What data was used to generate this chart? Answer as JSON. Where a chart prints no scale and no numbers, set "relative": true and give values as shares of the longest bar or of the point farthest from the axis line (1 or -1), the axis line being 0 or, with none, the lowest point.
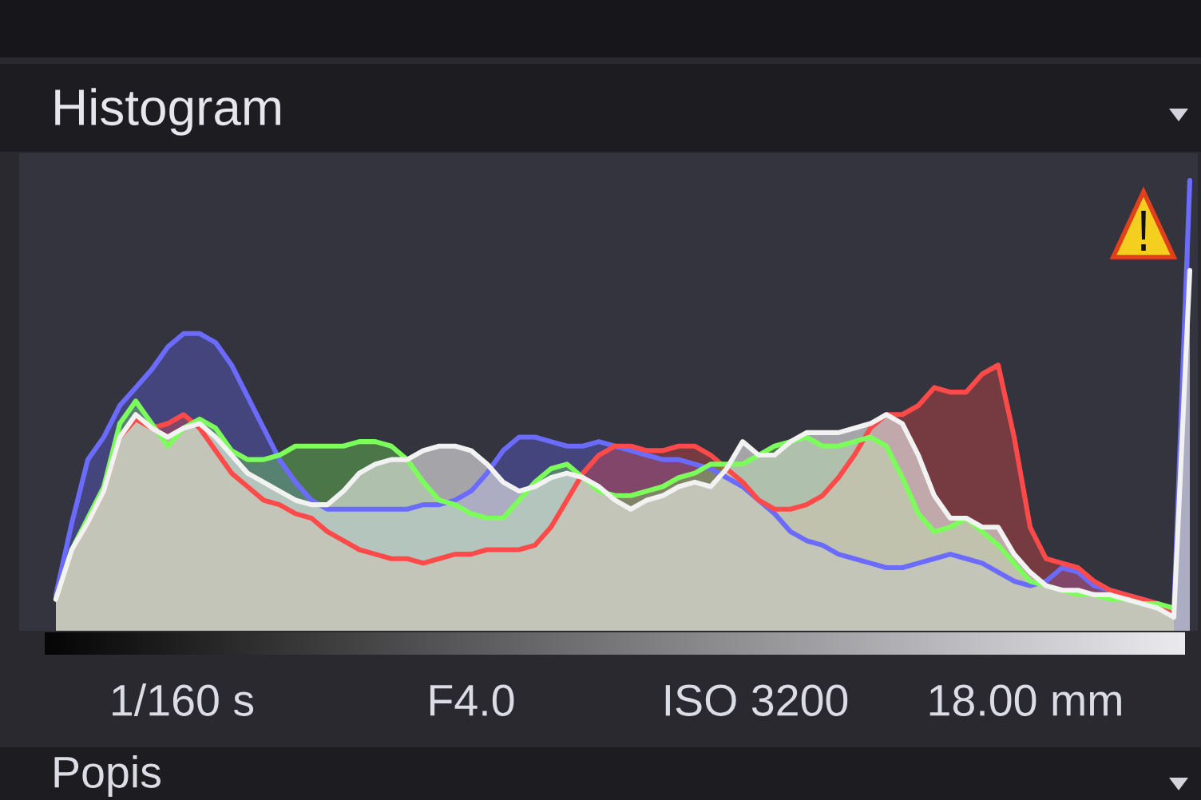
{
  "chart_data": {
    "type": "area",
    "title": "Histogram",
    "relative": true,
    "categories": [
      null,
      null,
      null,
      null,
      null,
      null,
      null,
      null,
      null,
      null,
      null,
      null,
      null,
      null,
      null,
      null,
      null,
      null,
      null,
      null,
      null,
      null,
      null,
      null,
      null,
      null,
      null,
      null,
      null,
      null,
      null,
      null,
      null,
      null,
      null,
      null,
      null,
      null,
      null,
      null,
      null,
      null,
      null,
      null,
      null,
      null,
      null,
      null,
      null,
      null,
      null,
      null,
      null,
      null,
      null,
      null,
      null,
      null,
      null,
      null,
      null,
      null,
      null,
      null,
      null,
      null,
      null,
      null,
      null,
      null,
      null,
      null
    ],
    "series": [
      {
        "color": "#6b6bff",
        "values": [
          0.08,
          0.24,
          0.38,
          0.43,
          0.5,
          0.54,
          0.58,
          0.63,
          0.66,
          0.66,
          0.64,
          0.59,
          0.52,
          0.45,
          0.38,
          0.33,
          0.29,
          0.27,
          0.27,
          0.27,
          0.27,
          0.27,
          0.27,
          0.28,
          0.28,
          0.29,
          0.31,
          0.35,
          0.4,
          0.43,
          0.43,
          0.42,
          0.41,
          0.41,
          0.42,
          0.41,
          0.4,
          0.39,
          0.38,
          0.38,
          0.37,
          0.36,
          0.34,
          0.32,
          0.29,
          0.26,
          0.22,
          0.2,
          0.19,
          0.17,
          0.16,
          0.15,
          0.14,
          0.14,
          0.15,
          0.16,
          0.17,
          0.16,
          0.15,
          0.13,
          0.11,
          0.1,
          0.11,
          0.14,
          0.13,
          0.1,
          0.09,
          0.08,
          0.07,
          0.06,
          0.04,
          1.0
        ]
      },
      {
        "color": "#ff4a4a",
        "values": [
          0.07,
          0.18,
          0.24,
          0.31,
          0.43,
          0.47,
          0.45,
          0.46,
          0.48,
          0.45,
          0.4,
          0.35,
          0.32,
          0.29,
          0.28,
          0.26,
          0.25,
          0.22,
          0.2,
          0.18,
          0.17,
          0.16,
          0.16,
          0.15,
          0.16,
          0.17,
          0.17,
          0.18,
          0.18,
          0.18,
          0.19,
          0.23,
          0.29,
          0.35,
          0.39,
          0.41,
          0.41,
          0.4,
          0.4,
          0.41,
          0.41,
          0.39,
          0.36,
          0.33,
          0.29,
          0.27,
          0.27,
          0.28,
          0.3,
          0.34,
          0.39,
          0.45,
          0.48,
          0.48,
          0.5,
          0.54,
          0.53,
          0.53,
          0.57,
          0.59,
          0.43,
          0.23,
          0.16,
          0.15,
          0.14,
          0.11,
          0.09,
          0.08,
          0.07,
          0.06,
          0.04,
          null
        ]
      },
      {
        "color": "#7cff5a",
        "values": [
          0.07,
          0.18,
          0.25,
          0.32,
          0.46,
          0.51,
          0.46,
          0.41,
          0.45,
          0.47,
          0.45,
          0.4,
          0.38,
          0.38,
          0.39,
          0.41,
          0.41,
          0.41,
          0.41,
          0.42,
          0.42,
          0.41,
          0.38,
          0.33,
          0.29,
          0.28,
          0.26,
          0.25,
          0.25,
          0.29,
          0.33,
          0.36,
          0.37,
          0.34,
          0.31,
          0.3,
          0.3,
          0.31,
          0.32,
          0.34,
          0.35,
          0.37,
          0.37,
          0.37,
          0.39,
          0.41,
          0.42,
          0.43,
          0.41,
          0.41,
          0.42,
          0.43,
          0.41,
          0.34,
          0.26,
          0.22,
          0.23,
          0.25,
          0.22,
          0.19,
          0.15,
          0.11,
          0.1,
          0.09,
          0.08,
          0.08,
          0.07,
          0.07,
          0.06,
          0.06,
          0.05,
          null
        ]
      },
      {
        "color": "#f2f2f2",
        "values": [
          0.07,
          0.18,
          0.24,
          0.31,
          0.43,
          0.48,
          0.45,
          0.43,
          0.45,
          0.46,
          0.43,
          0.39,
          0.35,
          0.33,
          0.31,
          0.29,
          0.28,
          0.28,
          0.31,
          0.35,
          0.37,
          0.38,
          0.38,
          0.4,
          0.41,
          0.41,
          0.4,
          0.37,
          0.33,
          0.31,
          0.32,
          0.34,
          0.35,
          0.34,
          0.32,
          0.29,
          0.27,
          0.29,
          0.3,
          0.32,
          0.33,
          0.32,
          0.36,
          0.42,
          0.39,
          0.39,
          0.42,
          0.44,
          0.44,
          0.44,
          0.45,
          0.46,
          0.48,
          0.46,
          0.39,
          0.3,
          0.25,
          0.25,
          0.23,
          0.23,
          0.17,
          0.13,
          0.1,
          0.09,
          0.09,
          0.08,
          0.08,
          0.07,
          0.06,
          0.05,
          0.03,
          0.8
        ]
      }
    ],
    "annotations": [
      "1/160 s",
      "F4.0",
      "ISO 3200",
      "18.00 mm",
      "Popis"
    ]
  }
}
